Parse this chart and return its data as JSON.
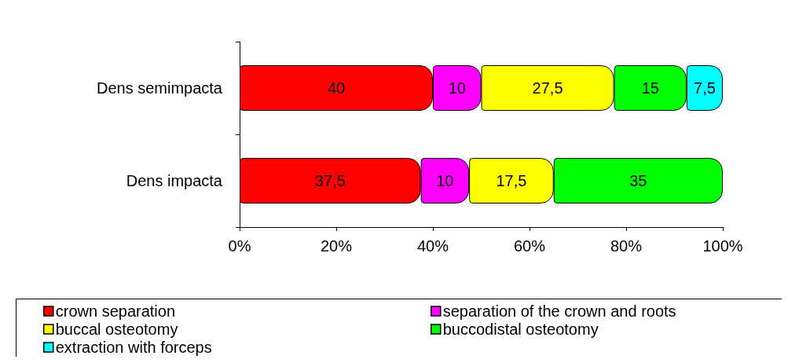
{
  "chart_data": {
    "type": "bar",
    "orientation": "horizontal",
    "stacked": true,
    "categories": [
      "Dens semimpacta",
      "Dens impacta"
    ],
    "series": [
      {
        "name": "crown separation",
        "color": "#ff0000",
        "values": [
          40,
          37.5
        ],
        "value_labels": [
          "40",
          "37,5"
        ]
      },
      {
        "name": "separation of the crown and roots",
        "color": "#ff00ff",
        "values": [
          10,
          10
        ],
        "value_labels": [
          "10",
          "10"
        ]
      },
      {
        "name": "buccal osteotomy",
        "color": "#ffff00",
        "values": [
          27.5,
          17.5
        ],
        "value_labels": [
          "27,5",
          "17,5"
        ]
      },
      {
        "name": "buccodistal osteotomy",
        "color": "#00ff00",
        "values": [
          15,
          35
        ],
        "value_labels": [
          "15",
          "35"
        ]
      },
      {
        "name": "extraction with forceps",
        "color": "#00ffff",
        "values": [
          7.5,
          null
        ],
        "value_labels": [
          "7,5",
          null
        ]
      }
    ],
    "xlim": [
      0,
      100
    ],
    "xticks": [
      {
        "value": 0,
        "label": "0%"
      },
      {
        "value": 20,
        "label": "20%"
      },
      {
        "value": 40,
        "label": "40%"
      },
      {
        "value": 60,
        "label": "60%"
      },
      {
        "value": 80,
        "label": "80%"
      },
      {
        "value": 100,
        "label": "100%"
      }
    ],
    "grid": false,
    "legend": "bottom"
  }
}
